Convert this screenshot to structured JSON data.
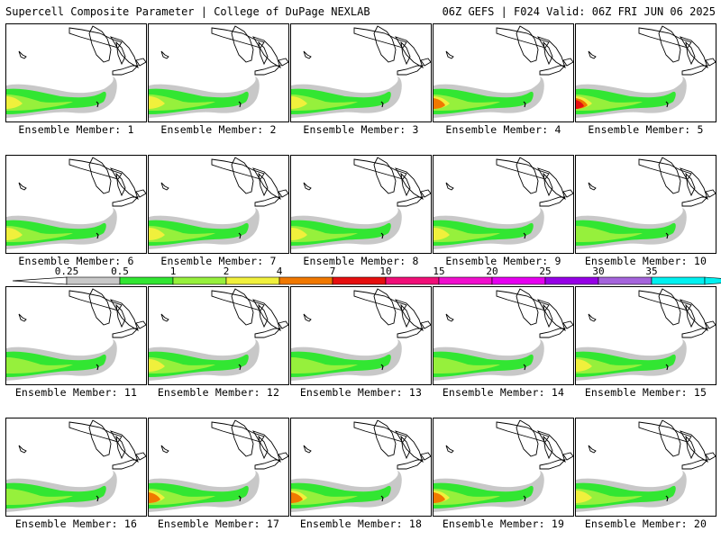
{
  "header": {
    "title": "Supercell Composite Parameter | College of DuPage NEXLAB",
    "run_info": "06Z GEFS | F024 Valid: 06Z FRI JUN 06 2025"
  },
  "members": [
    {
      "label": "Ensemble Member: 1",
      "peak": 2
    },
    {
      "label": "Ensemble Member: 2",
      "peak": 2
    },
    {
      "label": "Ensemble Member: 3",
      "peak": 2
    },
    {
      "label": "Ensemble Member: 4",
      "peak": 3
    },
    {
      "label": "Ensemble Member: 5",
      "peak": 4
    },
    {
      "label": "Ensemble Member: 6",
      "peak": 2
    },
    {
      "label": "Ensemble Member: 7",
      "peak": 2
    },
    {
      "label": "Ensemble Member: 8",
      "peak": 2
    },
    {
      "label": "Ensemble Member: 9",
      "peak": 2
    },
    {
      "label": "Ensemble Member: 10",
      "peak": 1
    },
    {
      "label": "Ensemble Member: 11",
      "peak": 1
    },
    {
      "label": "Ensemble Member: 12",
      "peak": 2
    },
    {
      "label": "Ensemble Member: 13",
      "peak": 1
    },
    {
      "label": "Ensemble Member: 14",
      "peak": 1
    },
    {
      "label": "Ensemble Member: 15",
      "peak": 2
    },
    {
      "label": "Ensemble Member: 16",
      "peak": 1
    },
    {
      "label": "Ensemble Member: 17",
      "peak": 3
    },
    {
      "label": "Ensemble Member: 18",
      "peak": 3
    },
    {
      "label": "Ensemble Member: 19",
      "peak": 3
    },
    {
      "label": "Ensemble Member: 20",
      "peak": 2
    }
  ],
  "colorbar": {
    "ticks": [
      "0.25",
      "0.5",
      "1",
      "2",
      "4",
      "7",
      "10",
      "15",
      "20",
      "25",
      "30",
      "35"
    ],
    "colors": [
      "#c8c8c8",
      "#32e632",
      "#96f03c",
      "#f0f03c",
      "#f07800",
      "#e60f0f",
      "#f00f78",
      "#f00fcd",
      "#e600f0",
      "#9600e6",
      "#a564dc",
      "#00f0f0"
    ]
  },
  "map_colors": {
    "gray": "#c8c8c8",
    "green": "#32e632",
    "lightgreen": "#96f03c",
    "yellow": "#f0f03c",
    "orange": "#f07800",
    "red": "#e60f0f"
  }
}
